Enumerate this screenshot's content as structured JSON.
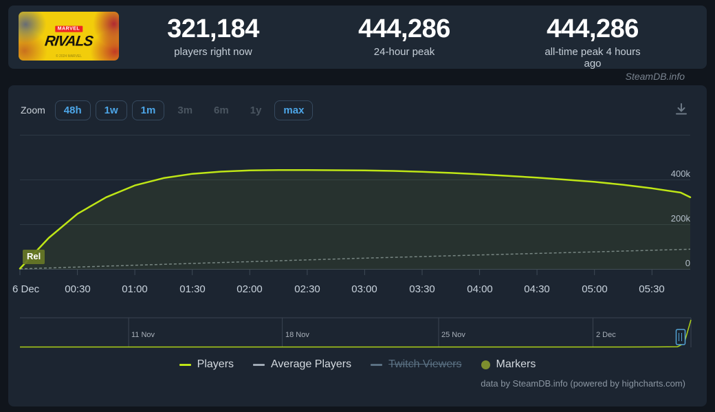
{
  "header": {
    "banner": {
      "brand": "MARVEL",
      "title": "RIVALS",
      "copyright": "© 2024 MARVEL"
    },
    "stats": [
      {
        "value": "321,184",
        "label": "players right now"
      },
      {
        "value": "444,286",
        "label": "24-hour peak"
      },
      {
        "value": "444,286",
        "label": "all-time peak 4 hours ago"
      }
    ]
  },
  "watermark": "SteamDB.info",
  "toolbar": {
    "zoom_label": "Zoom",
    "ranges": [
      {
        "label": "48h",
        "enabled": true
      },
      {
        "label": "1w",
        "enabled": true
      },
      {
        "label": "1m",
        "enabled": true
      },
      {
        "label": "3m",
        "enabled": false
      },
      {
        "label": "6m",
        "enabled": false
      },
      {
        "label": "1y",
        "enabled": false
      },
      {
        "label": "max",
        "enabled": true
      }
    ]
  },
  "chart_data": {
    "type": "line",
    "title": "",
    "x_axis": {
      "tick_labels": [
        "6 Dec",
        "00:30",
        "01:00",
        "01:30",
        "02:00",
        "02:30",
        "03:00",
        "03:30",
        "04:00",
        "04:30",
        "05:00",
        "05:30"
      ],
      "start": "6 Dec 00:00",
      "end": "6 Dec 05:50",
      "tick_interval_minutes": 30
    },
    "y_axis": {
      "tick_labels": [
        "400k",
        "200k",
        "0"
      ],
      "tick_values_k": [
        400,
        200,
        0
      ],
      "gridlines_k": [
        600,
        400,
        200,
        0
      ],
      "ylim_k": [
        0,
        650
      ]
    },
    "series": [
      {
        "name": "Players",
        "color": "#bfe616",
        "dash": "solid",
        "t_minutes": [
          0,
          15,
          30,
          45,
          60,
          75,
          90,
          105,
          120,
          135,
          150,
          165,
          180,
          195,
          210,
          225,
          240,
          255,
          270,
          285,
          300,
          315,
          330,
          345,
          350
        ],
        "values_k": [
          3,
          140,
          248,
          322,
          375,
          408,
          427,
          437,
          442,
          444,
          444,
          443,
          442,
          440,
          436,
          431,
          425,
          418,
          410,
          401,
          391,
          378,
          362,
          343,
          322
        ]
      },
      {
        "name": "Average Players",
        "color": "#9aa6b2",
        "dash": "dashed",
        "t_minutes": [
          0,
          60,
          120,
          180,
          240,
          300,
          350
        ],
        "values_k": [
          2,
          18,
          34,
          50,
          64,
          78,
          90
        ]
      },
      {
        "name": "Twitch Viewers",
        "color": "#5b7183",
        "hidden": true
      },
      {
        "name": "Markers",
        "color": "#7d8f2e",
        "marker": "circle"
      }
    ],
    "release_marker": {
      "label": "Rel"
    },
    "navigator": {
      "date_ticks": [
        {
          "label": "11 Nov",
          "f": 0.162
        },
        {
          "label": "18 Nov",
          "f": 0.391
        },
        {
          "label": "25 Nov",
          "f": 0.624
        },
        {
          "label": "2 Dec",
          "f": 0.854
        }
      ],
      "series": {
        "x_fraction": [
          0,
          0.9,
          0.95,
          0.98,
          0.99,
          1.0
        ],
        "values_k": [
          0,
          0,
          1,
          4,
          60,
          444
        ]
      }
    }
  },
  "legend": [
    {
      "label": "Players",
      "color": "#bfe616",
      "swatch": "line",
      "disabled": false
    },
    {
      "label": "Average Players",
      "color": "#9fa9b4",
      "swatch": "line",
      "disabled": false
    },
    {
      "label": "Twitch Viewers",
      "color": "#5b7183",
      "swatch": "line",
      "disabled": true
    },
    {
      "label": "Markers",
      "color": "#7d8f2e",
      "swatch": "circle",
      "disabled": false
    }
  ],
  "credit": "data by SteamDB.info (powered by highcharts.com)"
}
